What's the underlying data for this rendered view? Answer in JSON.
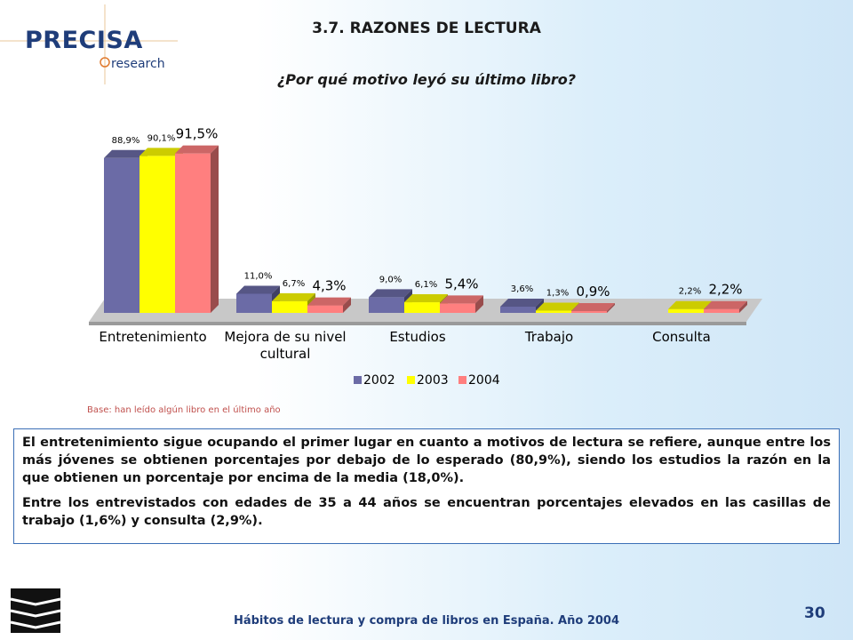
{
  "brand": {
    "name": "PRECISA",
    "sub": "research"
  },
  "header": {
    "title": "3.7. RAZONES DE LECTURA",
    "subtitle": "¿Por qué motivo leyó su último libro?"
  },
  "chart_data": {
    "type": "bar",
    "title": "¿Por qué motivo leyó su último libro?",
    "categories": [
      "Entretenimiento",
      "Mejora de su nivel cultural",
      "Estudios",
      "Trabajo",
      "Consulta"
    ],
    "category_lines": [
      [
        "Entretenimiento"
      ],
      [
        "Mejora de su nivel",
        "cultural"
      ],
      [
        "Estudios"
      ],
      [
        "Trabajo"
      ],
      [
        "Consulta"
      ]
    ],
    "series": [
      {
        "name": "2002",
        "values": [
          88.9,
          11.0,
          9.0,
          3.6,
          null
        ],
        "labels": [
          "88,9%",
          "11,0%",
          "9,0%",
          "3,6%",
          ""
        ],
        "color": "#6b6ba6"
      },
      {
        "name": "2003",
        "values": [
          90.1,
          6.7,
          6.1,
          1.3,
          2.2
        ],
        "labels": [
          "90,1%",
          "6,7%",
          "6,1%",
          "1,3%",
          "2,2%"
        ],
        "color": "#ffff00"
      },
      {
        "name": "2004",
        "values": [
          91.5,
          4.3,
          5.4,
          0.9,
          2.2
        ],
        "labels": [
          "91,5%",
          "4,3%",
          "5,4%",
          "0,9%",
          "2,2%"
        ],
        "color": "#ff7f7f"
      }
    ],
    "ylim": [
      0,
      100
    ],
    "grid": false,
    "legend_position": "bottom",
    "style": "3d-bar"
  },
  "note": "Base: han leído algún libro en el último año",
  "body": {
    "paragraph1": "El entretenimiento sigue ocupando el primer lugar en cuanto a motivos de lectura se refiere, aunque entre los más jóvenes se obtienen porcentajes por debajo de lo esperado (80,9%), siendo los estudios la razón en la que obtienen un porcentaje por encima de la media (18,0%).",
    "paragraph2": "Entre los entrevistados con edades de 35 a 44 años se encuentran porcentajes elevados en las casillas de trabajo (1,6%) y consulta (2,9%)."
  },
  "footer": {
    "text": "Hábitos de lectura y compra de libros en España. Año 2004",
    "page": "30"
  }
}
